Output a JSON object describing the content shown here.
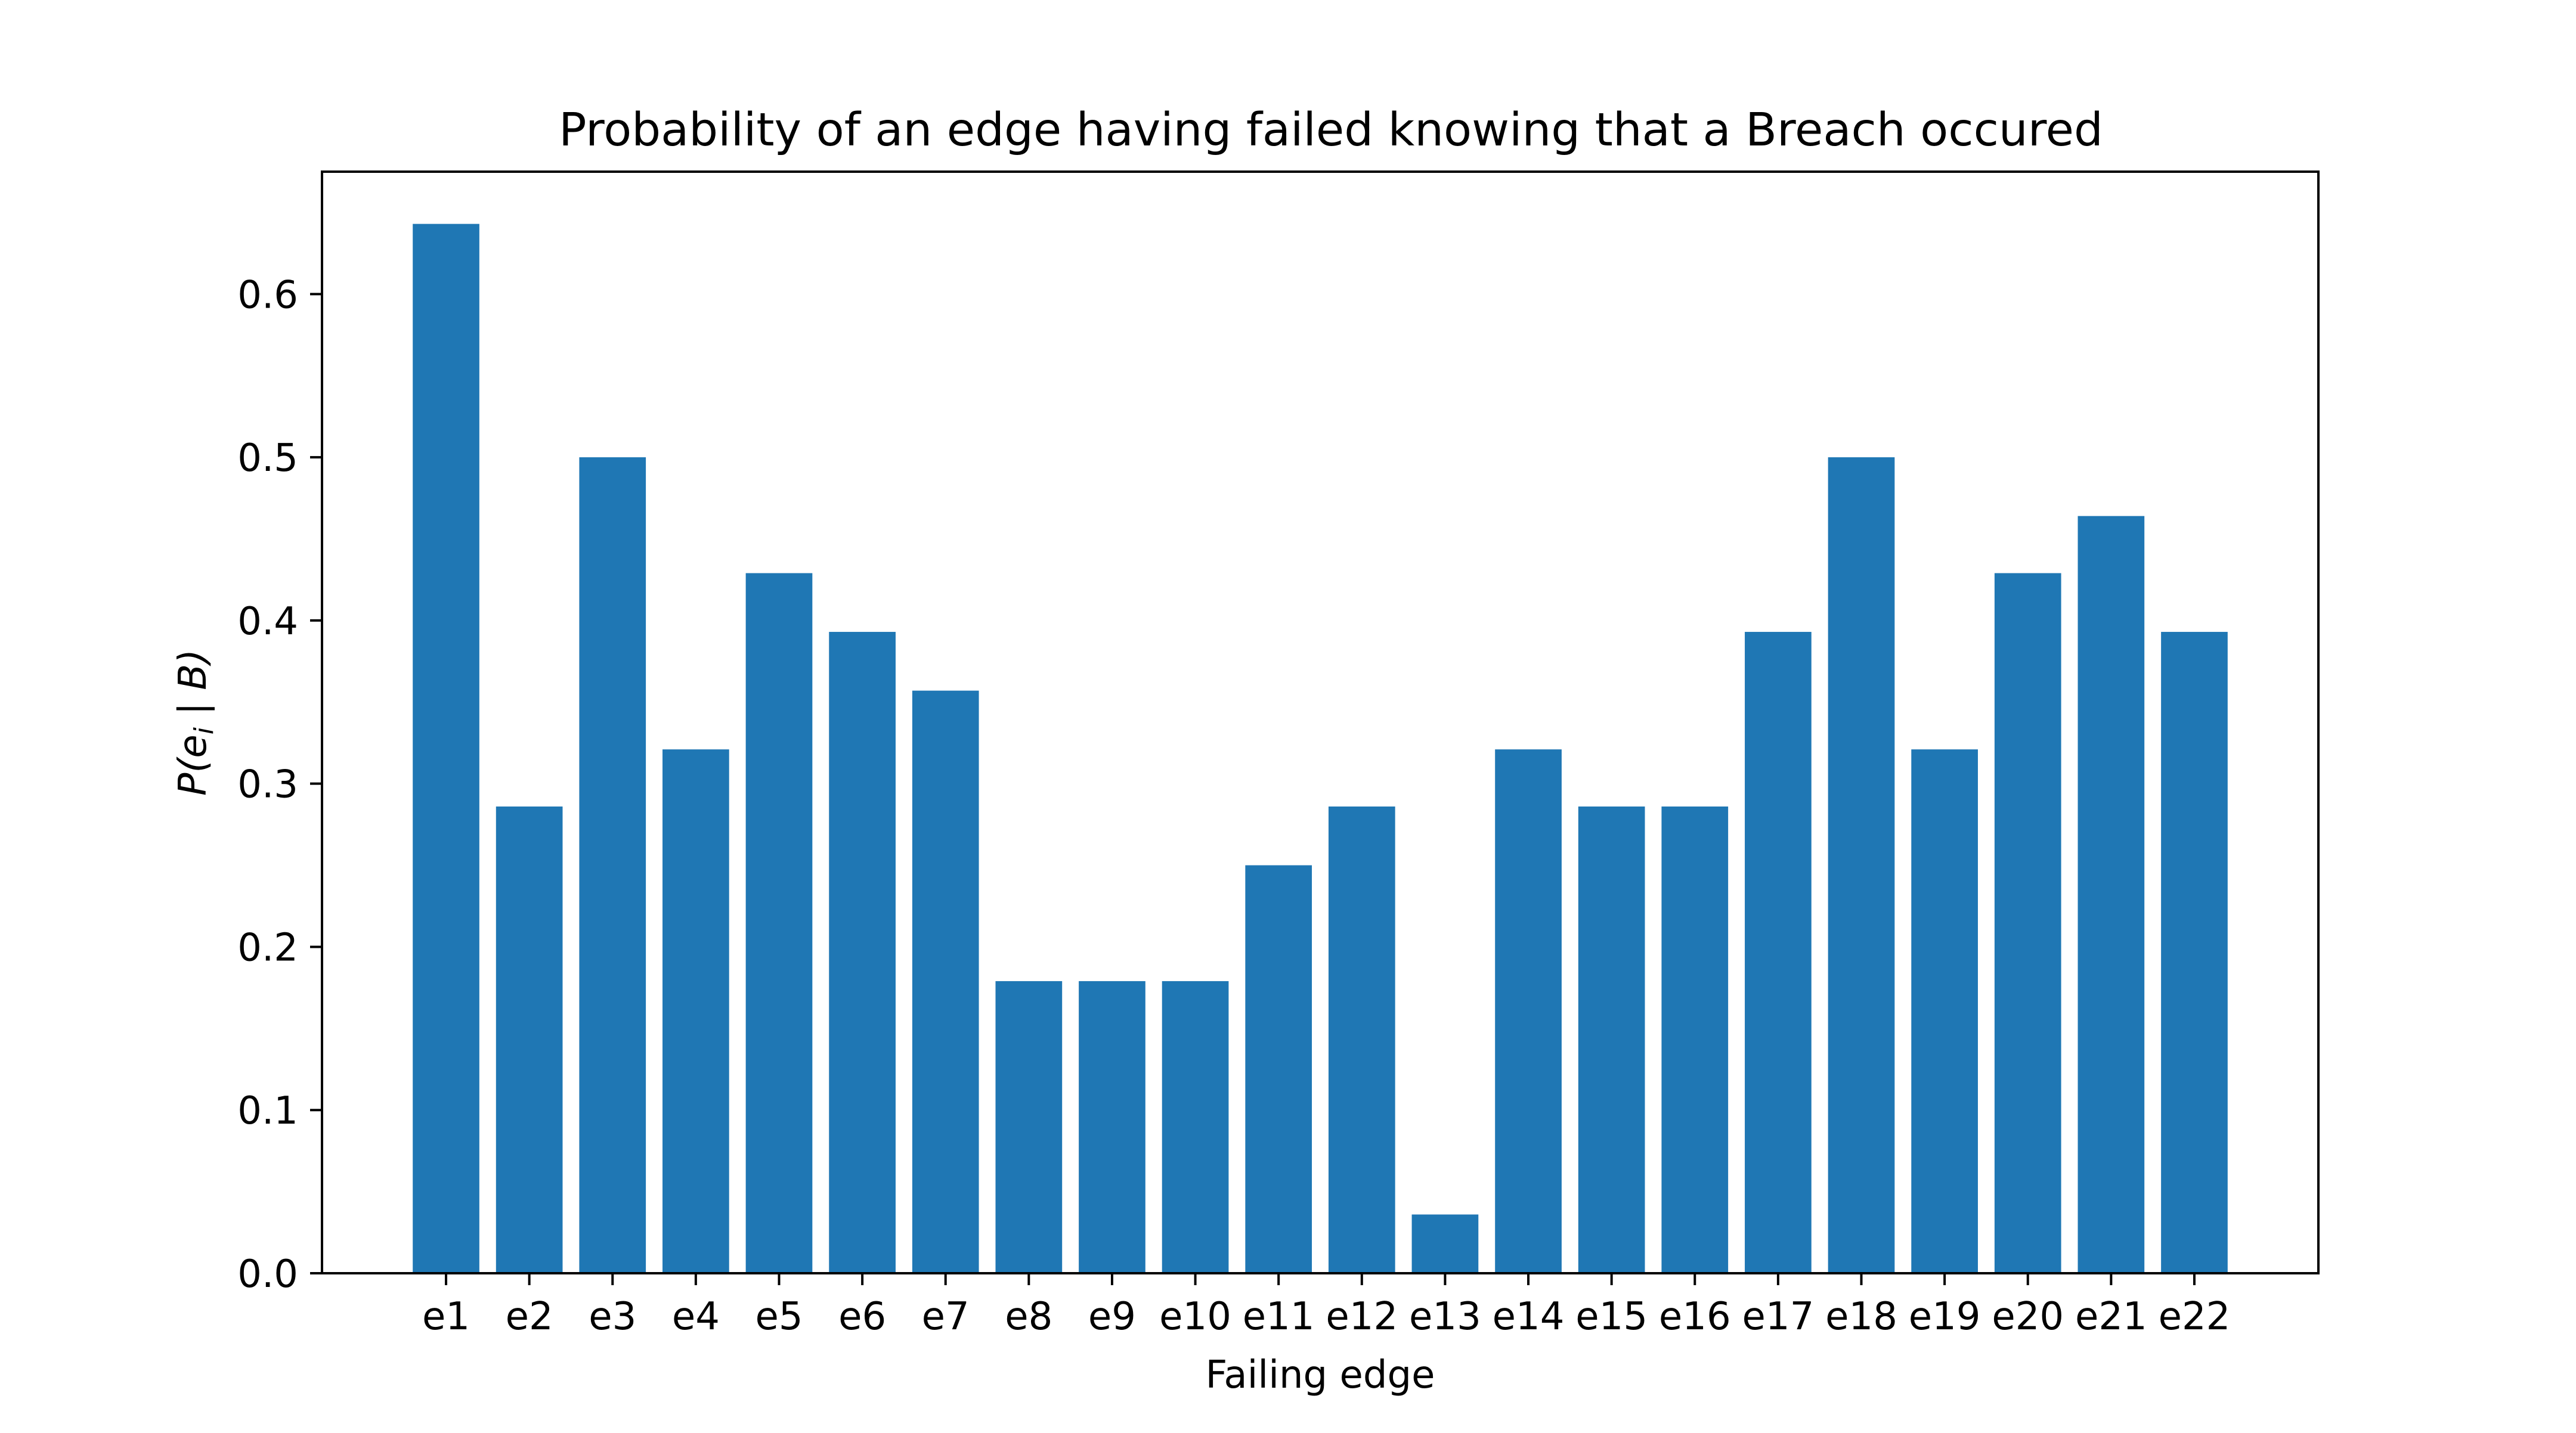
{
  "chart_data": {
    "type": "bar",
    "title": "Probability of an edge having failed knowing that a Breach occured",
    "xlabel": "Failing edge",
    "ylabel": {
      "prefix": "P(e",
      "subscript": "i",
      "suffix": " | B)"
    },
    "categories": [
      "e1",
      "e2",
      "e3",
      "e4",
      "e5",
      "e6",
      "e7",
      "e8",
      "e9",
      "e10",
      "e11",
      "e12",
      "e13",
      "e14",
      "e15",
      "e16",
      "e17",
      "e18",
      "e19",
      "e20",
      "e21",
      "e22"
    ],
    "values": [
      0.643,
      0.286,
      0.5,
      0.321,
      0.429,
      0.393,
      0.357,
      0.179,
      0.179,
      0.179,
      0.25,
      0.286,
      0.036,
      0.321,
      0.286,
      0.286,
      0.393,
      0.5,
      0.321,
      0.429,
      0.464,
      0.393
    ],
    "ylim": [
      0,
      0.675
    ],
    "yticks": [
      0.0,
      0.1,
      0.2,
      0.3,
      0.4,
      0.5,
      0.6
    ],
    "ytick_labels": [
      "0.0",
      "0.1",
      "0.2",
      "0.3",
      "0.4",
      "0.5",
      "0.6"
    ],
    "bar_color": "#1f77b4",
    "grid": false,
    "legend": "none"
  }
}
